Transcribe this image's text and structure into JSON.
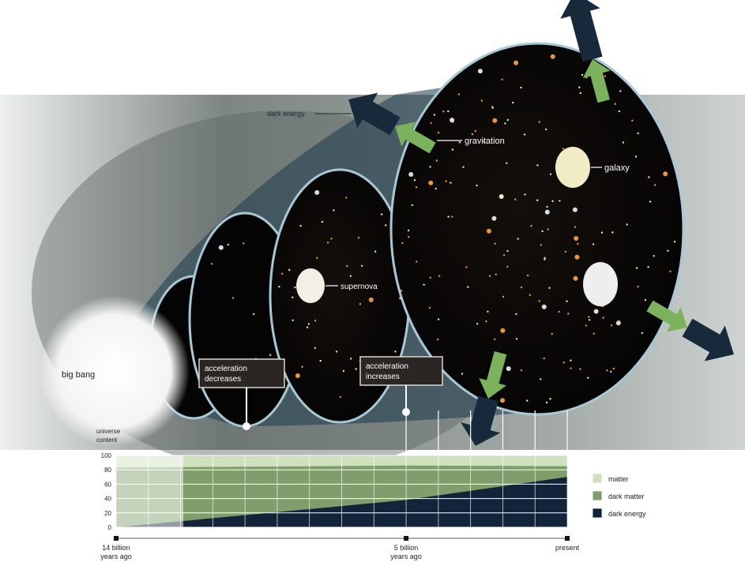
{
  "labels": {
    "dark_energy_top": "dark energy",
    "gravitation": "gravitation",
    "galaxy": "galaxy",
    "supernova": "supernova",
    "big_bang": "big bang",
    "acc_decreases": [
      "acceleration",
      "decreases"
    ],
    "acc_increases": [
      "acceleration",
      "increases"
    ],
    "y_title": [
      "universe",
      "content"
    ]
  },
  "chart_data": {
    "type": "area",
    "title": "",
    "ylabel": "universe content",
    "yticks": [
      "100",
      "80",
      "60",
      "40",
      "20",
      "0"
    ],
    "ylim": [
      0,
      100
    ],
    "x_ticks": [
      {
        "label": [
          "14 billion",
          "years ago"
        ]
      },
      {
        "label": [
          "5 billion",
          "years ago"
        ]
      },
      {
        "label": [
          "present"
        ]
      }
    ],
    "x": [
      14,
      5,
      0
    ],
    "series": [
      {
        "name": "matter",
        "values": [
          100,
          100,
          100
        ]
      },
      {
        "name": "dark matter",
        "values": [
          83,
          86,
          85
        ]
      },
      {
        "name": "dark energy",
        "values": [
          0,
          38,
          70
        ]
      }
    ],
    "legend_position": "bottom-right"
  },
  "colors": {
    "matter": "#cfe2bd",
    "dark_matter": "#7f9e6c",
    "dark_energy": "#12233a",
    "arrow_dark": "#17293a",
    "arrow_green": "#7db25d",
    "rim": "#a9c8d6"
  }
}
